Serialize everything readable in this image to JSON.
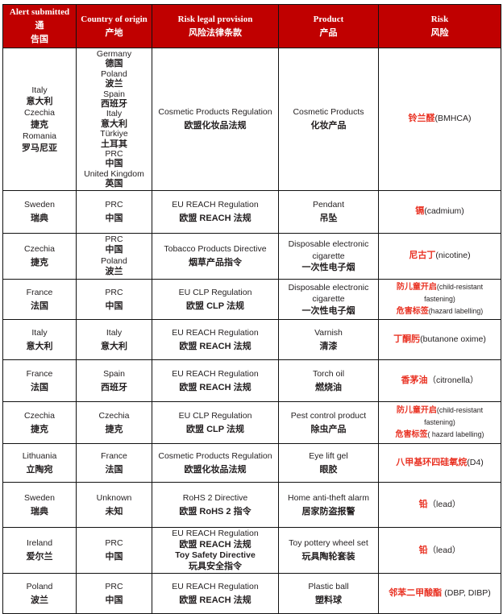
{
  "colors": {
    "header_bg": "#c00000",
    "header_text": "#ffffff",
    "risk_red": "#e93223",
    "body_text": "#231f20",
    "border": "#111111"
  },
  "table": {
    "headers": [
      {
        "line1": "Alert submitted 通",
        "line2": "告国"
      },
      {
        "line1": "Country of origin",
        "line2": "产地"
      },
      {
        "line1": "Risk legal provision",
        "line2": "风险法律条款"
      },
      {
        "line1": "Product",
        "line2": "产品"
      },
      {
        "line1": "Risk",
        "line2": "风险"
      }
    ],
    "rows": [
      {
        "alert": [
          {
            "t": "Italy"
          },
          {
            "t": "意大利",
            "zh": true
          },
          {
            "t": "Czechia"
          },
          {
            "t": "捷克",
            "zh": true
          },
          {
            "t": "Romania"
          },
          {
            "t": "罗马尼亚",
            "zh": true
          }
        ],
        "origin": [
          {
            "t": "Germany"
          },
          {
            "t": "德国",
            "zh": true
          },
          {
            "t": "Poland"
          },
          {
            "t": "波兰",
            "zh": true
          },
          {
            "t": "Spain"
          },
          {
            "t": "西班牙",
            "zh": true
          },
          {
            "t": "Italy"
          },
          {
            "t": "意大利",
            "zh": true
          },
          {
            "t": "Türkiye"
          },
          {
            "t": "土耳其",
            "zh": true
          },
          {
            "t": "PRC"
          },
          {
            "t": "中国",
            "zh": true
          },
          {
            "t": "United Kingdom"
          },
          {
            "t": "英国",
            "zh": true
          }
        ],
        "provision": [
          {
            "t": "Cosmetic Products Regulation"
          },
          {
            "t": "欧盟化妆品法规",
            "zh": true
          }
        ],
        "product": [
          {
            "t": "Cosmetic Products"
          },
          {
            "t": "化妆产品",
            "zh": true
          }
        ],
        "risk": [
          [
            {
              "t": "铃兰醛",
              "red": true
            },
            {
              "t": "(BMHCA)"
            }
          ]
        ],
        "risk_small": false
      },
      {
        "alert": [
          {
            "t": "Sweden"
          },
          {
            "t": "瑞典",
            "zh": true
          }
        ],
        "origin": [
          {
            "t": "PRC"
          },
          {
            "t": "中国",
            "zh": true
          }
        ],
        "provision": [
          {
            "t": "EU REACH Regulation"
          },
          {
            "t": "欧盟 REACH 法规",
            "zh": true
          }
        ],
        "product": [
          {
            "t": "Pendant"
          },
          {
            "t": "吊坠",
            "zh": true
          }
        ],
        "risk": [
          [
            {
              "t": "镉",
              "red": true
            },
            {
              "t": "(cadmium)"
            }
          ]
        ],
        "risk_small": false
      },
      {
        "alert": [
          {
            "t": "Czechia"
          },
          {
            "t": "捷克",
            "zh": true
          }
        ],
        "origin": [
          {
            "t": "PRC"
          },
          {
            "t": "中国",
            "zh": true
          },
          {
            "t": "Poland"
          },
          {
            "t": "波兰",
            "zh": true
          }
        ],
        "provision": [
          {
            "t": "Tobacco Products Directive"
          },
          {
            "t": "烟草产品指令",
            "zh": true
          }
        ],
        "product": [
          {
            "t": "Disposable electronic"
          },
          {
            "t": "cigarette"
          },
          {
            "t": "一次性电子烟",
            "zh": true
          }
        ],
        "risk": [
          [
            {
              "t": "尼古丁",
              "red": true
            },
            {
              "t": "(nicotine)"
            }
          ]
        ],
        "risk_small": false
      },
      {
        "alert": [
          {
            "t": "France"
          },
          {
            "t": "法国",
            "zh": true
          }
        ],
        "origin": [
          {
            "t": "PRC"
          },
          {
            "t": "中国",
            "zh": true
          }
        ],
        "provision": [
          {
            "t": "EU CLP Regulation"
          },
          {
            "t": "欧盟 CLP 法规",
            "zh": true
          }
        ],
        "product": [
          {
            "t": "Disposable electronic"
          },
          {
            "t": "cigarette"
          },
          {
            "t": "一次性电子烟",
            "zh": true
          }
        ],
        "risk": [
          [
            {
              "t": "防儿童开启",
              "red": true
            },
            {
              "t": "(child-resistant fastening)"
            }
          ],
          [
            {
              "t": "危害标签",
              "red": true
            },
            {
              "t": "(hazard labelling)"
            }
          ]
        ],
        "risk_small": true
      },
      {
        "alert": [
          {
            "t": "Italy"
          },
          {
            "t": "意大利",
            "zh": true
          }
        ],
        "origin": [
          {
            "t": "Italy"
          },
          {
            "t": "意大利",
            "zh": true
          }
        ],
        "provision": [
          {
            "t": "EU REACH Regulation"
          },
          {
            "t": "欧盟 REACH 法规",
            "zh": true
          }
        ],
        "product": [
          {
            "t": "Varnish"
          },
          {
            "t": "清漆",
            "zh": true
          }
        ],
        "risk": [
          [
            {
              "t": "丁酮肟",
              "red": true
            },
            {
              "t": "(butanone oxime)"
            }
          ]
        ],
        "risk_small": false
      },
      {
        "alert": [
          {
            "t": "France"
          },
          {
            "t": "法国",
            "zh": true
          }
        ],
        "origin": [
          {
            "t": "Spain"
          },
          {
            "t": "西班牙",
            "zh": true
          }
        ],
        "provision": [
          {
            "t": "EU REACH Regulation"
          },
          {
            "t": "欧盟 REACH 法规",
            "zh": true
          }
        ],
        "product": [
          {
            "t": "Torch oil"
          },
          {
            "t": "燃烧油",
            "zh": true
          }
        ],
        "risk": [
          [
            {
              "t": "香茅油",
              "red": true
            },
            {
              "t": "（citronella）"
            }
          ]
        ],
        "risk_small": false
      },
      {
        "alert": [
          {
            "t": "Czechia"
          },
          {
            "t": "捷克",
            "zh": true
          }
        ],
        "origin": [
          {
            "t": "Czechia"
          },
          {
            "t": "捷克",
            "zh": true
          }
        ],
        "provision": [
          {
            "t": "EU CLP Regulation"
          },
          {
            "t": "欧盟 CLP 法规",
            "zh": true
          }
        ],
        "product": [
          {
            "t": "Pest control product"
          },
          {
            "t": "除虫产品",
            "zh": true
          }
        ],
        "risk": [
          [
            {
              "t": "防儿童开启",
              "red": true
            },
            {
              "t": "(child-resistant fastening)"
            }
          ],
          [
            {
              "t": "危害标签",
              "red": true
            },
            {
              "t": "( hazard labelling)"
            }
          ]
        ],
        "risk_small": true
      },
      {
        "alert": [
          {
            "t": "Lithuania"
          },
          {
            "t": "立陶宛",
            "zh": true
          }
        ],
        "origin": [
          {
            "t": "France"
          },
          {
            "t": "法国",
            "zh": true
          }
        ],
        "provision": [
          {
            "t": "Cosmetic Products Regulation"
          },
          {
            "t": "欧盟化妆品法规",
            "zh": true
          }
        ],
        "product": [
          {
            "t": "Eye lift gel"
          },
          {
            "t": "眼胶",
            "zh": true
          }
        ],
        "risk": [
          [
            {
              "t": "八甲基环四硅氧烷",
              "red": true
            },
            {
              "t": "(D4)"
            }
          ]
        ],
        "risk_small": false
      },
      {
        "alert": [
          {
            "t": "Sweden"
          },
          {
            "t": "瑞典",
            "zh": true
          }
        ],
        "origin": [
          {
            "t": "Unknown"
          },
          {
            "t": "未知",
            "zh": true
          }
        ],
        "provision": [
          {
            "t": "RoHS 2 Directive"
          },
          {
            "t": "欧盟 RoHS 2 指令",
            "zh": true
          }
        ],
        "product": [
          {
            "t": "Home anti-theft alarm"
          },
          {
            "t": "居家防盗报警",
            "zh": true
          }
        ],
        "risk": [
          [
            {
              "t": "铅",
              "red": true
            },
            {
              "t": "（lead）"
            }
          ]
        ],
        "risk_small": false
      },
      {
        "alert": [
          {
            "t": "Ireland"
          },
          {
            "t": "爱尔兰",
            "zh": true
          }
        ],
        "origin": [
          {
            "t": "PRC"
          },
          {
            "t": "中国",
            "zh": true
          }
        ],
        "provision": [
          {
            "t": "EU REACH Regulation"
          },
          {
            "t": "欧盟 REACH 法规",
            "zh": true
          },
          {
            "t": "Toy Safety Directive",
            "b": true
          },
          {
            "t": "玩具安全指令",
            "zh": true
          }
        ],
        "product": [
          {
            "t": "Toy pottery wheel set"
          },
          {
            "t": "玩具陶轮套装",
            "zh": true
          }
        ],
        "risk": [
          [
            {
              "t": "铅",
              "red": true
            },
            {
              "t": "（lead）"
            }
          ]
        ],
        "risk_small": false
      },
      {
        "alert": [
          {
            "t": "Poland"
          },
          {
            "t": "波兰",
            "zh": true
          }
        ],
        "origin": [
          {
            "t": "PRC"
          },
          {
            "t": "中国",
            "zh": true
          }
        ],
        "provision": [
          {
            "t": "EU REACH Regulation"
          },
          {
            "t": "欧盟 REACH 法规",
            "zh": true
          }
        ],
        "product": [
          {
            "t": "Plastic ball"
          },
          {
            "t": "塑料球",
            "zh": true
          }
        ],
        "risk": [
          [
            {
              "t": "邻苯二甲酸酯 ",
              "red": true
            },
            {
              "t": "(DBP, DIBP)"
            }
          ]
        ],
        "risk_small": false
      }
    ]
  }
}
